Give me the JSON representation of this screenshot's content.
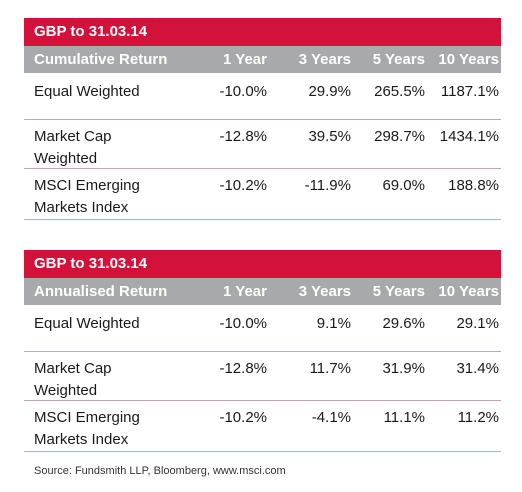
{
  "tables": [
    {
      "title": "GBP to 31.03.14",
      "header": [
        "Cumulative Return",
        "1 Year",
        "3 Years",
        "5 Years",
        "10 Years"
      ],
      "rows": [
        {
          "name_line1": "Equal Weighted",
          "name_line2": "",
          "values": [
            "-10.0%",
            "29.9%",
            "265.5%",
            "1187.1%"
          ]
        },
        {
          "name_line1": "Market Cap",
          "name_line2": "Weighted",
          "values": [
            "-12.8%",
            "39.5%",
            "298.7%",
            "1434.1%"
          ]
        },
        {
          "name_line1": "MSCI Emerging",
          "name_line2": "Markets Index",
          "values": [
            "-10.2%",
            "-11.9%",
            "69.0%",
            "188.8%"
          ]
        }
      ]
    },
    {
      "title": "GBP to 31.03.14",
      "header": [
        "Annualised Return",
        "1 Year",
        "3 Years",
        "5 Years",
        "10 Years"
      ],
      "rows": [
        {
          "name_line1": "Equal Weighted",
          "name_line2": "",
          "values": [
            "-10.0%",
            "9.1%",
            "29.6%",
            "29.1%"
          ]
        },
        {
          "name_line1": "Market Cap",
          "name_line2": "Weighted",
          "values": [
            "-12.8%",
            "11.7%",
            "31.9%",
            "31.4%"
          ]
        },
        {
          "name_line1": "MSCI Emerging",
          "name_line2": "Markets Index",
          "values": [
            "-10.2%",
            "-4.1%",
            "11.1%",
            "11.2%"
          ]
        }
      ]
    }
  ],
  "source": "Source: Fundsmith LLP, Bloomberg, www.msci.com",
  "colors": {
    "title_bar": "#d2123a",
    "header_bar": "#a7a9ac",
    "row_divider": "#c8a2b6"
  }
}
